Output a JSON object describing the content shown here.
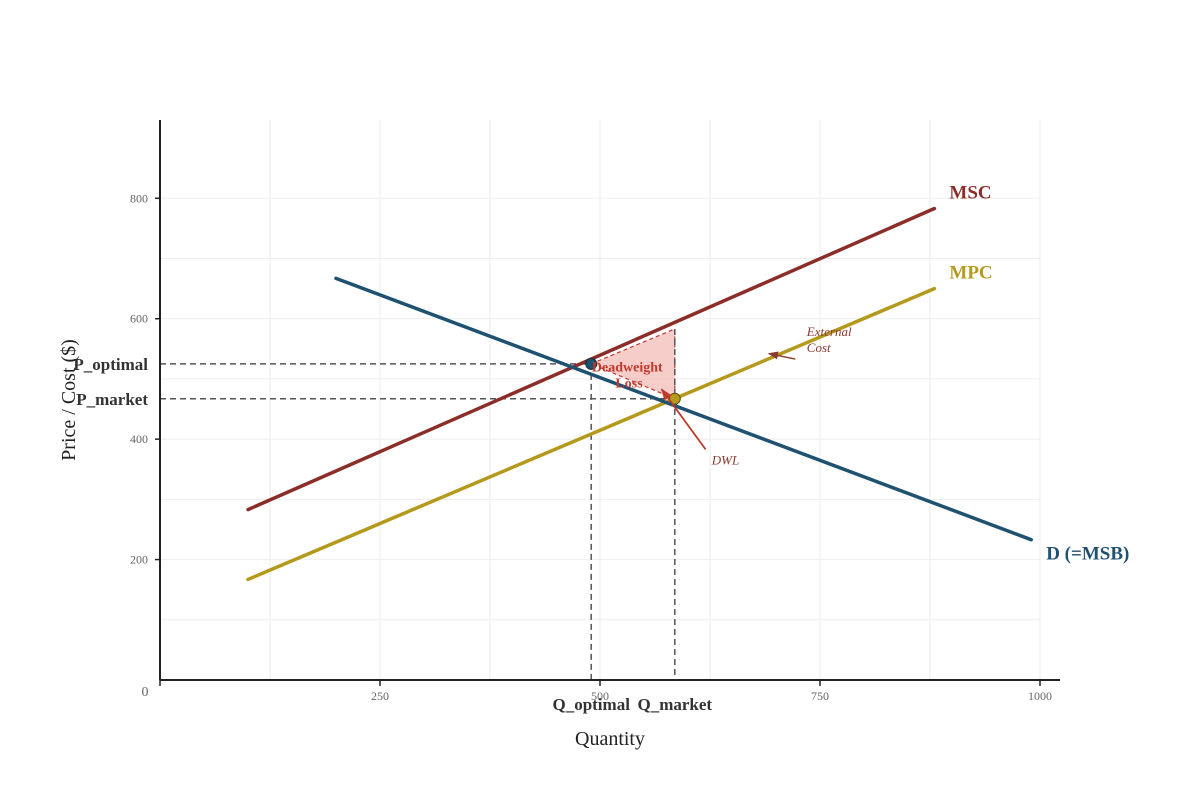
{
  "chart_data": {
    "type": "line",
    "title": "",
    "xlabel": "Quantity",
    "ylabel": "Price / Cost ($)",
    "xlim": [
      0,
      1000
    ],
    "ylim": [
      0,
      930
    ],
    "x_ticks": [
      250,
      500,
      750,
      1000
    ],
    "y_ticks": [
      200,
      400,
      600,
      800
    ],
    "origin_label": "0",
    "grid": true,
    "colors": {
      "msc": "#8b2e2a",
      "mpc": "#b5991c",
      "demand": "#1f5170",
      "dwl_fill": "#f4b8b4",
      "dwl_stroke": "#c0392b",
      "annotation": "#8b3a2f",
      "guide": "#555555"
    },
    "series": [
      {
        "name": "MSC",
        "x": [
          100,
          880
        ],
        "y": [
          283,
          783
        ]
      },
      {
        "name": "MPC",
        "x": [
          100,
          880
        ],
        "y": [
          167,
          650
        ]
      },
      {
        "name": "D (=MSB)",
        "x": [
          200,
          990
        ],
        "y": [
          667,
          233
        ]
      }
    ],
    "points": {
      "optimal": {
        "x": 490,
        "y": 525
      },
      "market": {
        "x": 585,
        "y": 467
      }
    },
    "markers": {
      "q_optimal": "Q_optimal",
      "q_market": "Q_market",
      "p_optimal": "P_optimal",
      "p_market": "P_market"
    },
    "deadweight_loss": {
      "polygon": [
        [
          490,
          525
        ],
        [
          585,
          583
        ],
        [
          585,
          467
        ]
      ],
      "label_line1": "Deadweight",
      "label_line2": "Loss",
      "label_pos": [
        533,
        512
      ]
    },
    "annotations": [
      {
        "text_lines": [
          "External",
          "Cost"
        ],
        "text_pos": [
          735,
          571
        ],
        "from": [
          722,
          533
        ],
        "to": [
          692,
          542
        ]
      },
      {
        "text_lines": [
          "DWL"
        ],
        "text_pos": [
          627,
          358
        ],
        "from": [
          620,
          383
        ],
        "to": [
          570,
          483
        ]
      }
    ]
  }
}
